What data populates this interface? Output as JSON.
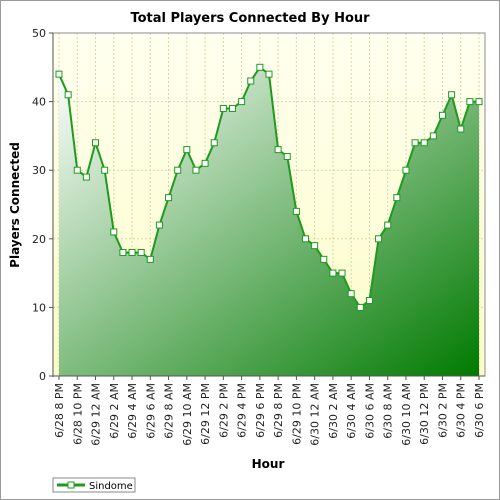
{
  "chart_data": {
    "type": "area",
    "title": "Total Players Connected By Hour",
    "xlabel": "Hour",
    "ylabel": "Players Connected",
    "ylim": [
      0,
      50
    ],
    "yticks": [
      0,
      10,
      20,
      30,
      40,
      50
    ],
    "grid": true,
    "legend_position": "bottom-left",
    "x_tick_labels": [
      "6/28 8 PM",
      "6/28 10 PM",
      "6/29 12 AM",
      "6/29 2 AM",
      "6/29 4 AM",
      "6/29 6 AM",
      "6/29 8 AM",
      "6/29 10 AM",
      "6/29 12 PM",
      "6/29 2 PM",
      "6/29 4 PM",
      "6/29 6 PM",
      "6/29 8 PM",
      "6/29 10 PM",
      "6/30 12 AM",
      "6/30 2 AM",
      "6/30 4 AM",
      "6/30 6 AM",
      "6/30 8 AM",
      "6/30 10 AM",
      "6/30 12 PM",
      "6/30 2 PM",
      "6/30 4 PM",
      "6/30 6 PM"
    ],
    "series": [
      {
        "name": "Sindome",
        "values": [
          44,
          41,
          30,
          29,
          34,
          30,
          21,
          18,
          18,
          18,
          17,
          22,
          26,
          30,
          33,
          30,
          31,
          34,
          39,
          39,
          40,
          43,
          45,
          44,
          33,
          32,
          24,
          20,
          19,
          17,
          15,
          15,
          12,
          10,
          11,
          20,
          22,
          26,
          30,
          34,
          34,
          35,
          38,
          41,
          36,
          40,
          40
        ]
      }
    ],
    "colors": {
      "line": "#1f9a1f",
      "marker_fill": "#ffffff",
      "area_top": "#ffffff",
      "area_bottom": "#007a00",
      "plot_bg_top": "#fffff0",
      "plot_bg_bottom": "#fcfcc8",
      "grid": "#d6d6a8"
    }
  }
}
